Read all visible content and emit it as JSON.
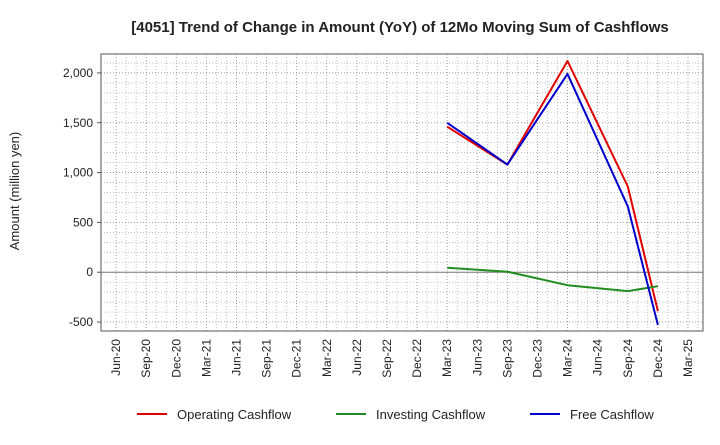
{
  "chart_data": {
    "type": "line",
    "title": "[4051]  Trend of Change in Amount (YoY) of 12Mo Moving Sum of Cashflows",
    "xlabel": "",
    "ylabel": "Amount (million yen)",
    "x_ticks": [
      "Jun-20",
      "Sep-20",
      "Dec-20",
      "Mar-21",
      "Jun-21",
      "Sep-21",
      "Dec-21",
      "Mar-22",
      "Jun-22",
      "Sep-22",
      "Dec-22",
      "Mar-23",
      "Jun-23",
      "Sep-23",
      "Dec-23",
      "Mar-24",
      "Jun-24",
      "Sep-24",
      "Dec-24",
      "Mar-25"
    ],
    "y_ticks": [
      -500,
      0,
      500,
      1000,
      1500,
      2000
    ],
    "y_tick_labels": [
      "-500",
      "0",
      "500",
      "1,000",
      "1,500",
      "2,000"
    ],
    "ylim": [
      -590,
      2190
    ],
    "grid": true,
    "legend_position": "bottom",
    "series": [
      {
        "name": "Operating Cashflow",
        "color": "#e00000",
        "x": [
          "Mar-23",
          "Sep-23",
          "Mar-24",
          "Sep-24",
          "Dec-24"
        ],
        "values": [
          1460,
          1080,
          2120,
          860,
          -390
        ]
      },
      {
        "name": "Investing Cashflow",
        "color": "#228b22",
        "x": [
          "Mar-23",
          "Sep-23",
          "Mar-24",
          "Sep-24",
          "Dec-24"
        ],
        "values": [
          45,
          5,
          -130,
          -190,
          -140
        ]
      },
      {
        "name": "Free Cashflow",
        "color": "#0000cc",
        "x": [
          "Mar-23",
          "Sep-23",
          "Mar-24",
          "Sep-24",
          "Dec-24"
        ],
        "values": [
          1500,
          1080,
          1990,
          660,
          -530
        ]
      }
    ]
  }
}
